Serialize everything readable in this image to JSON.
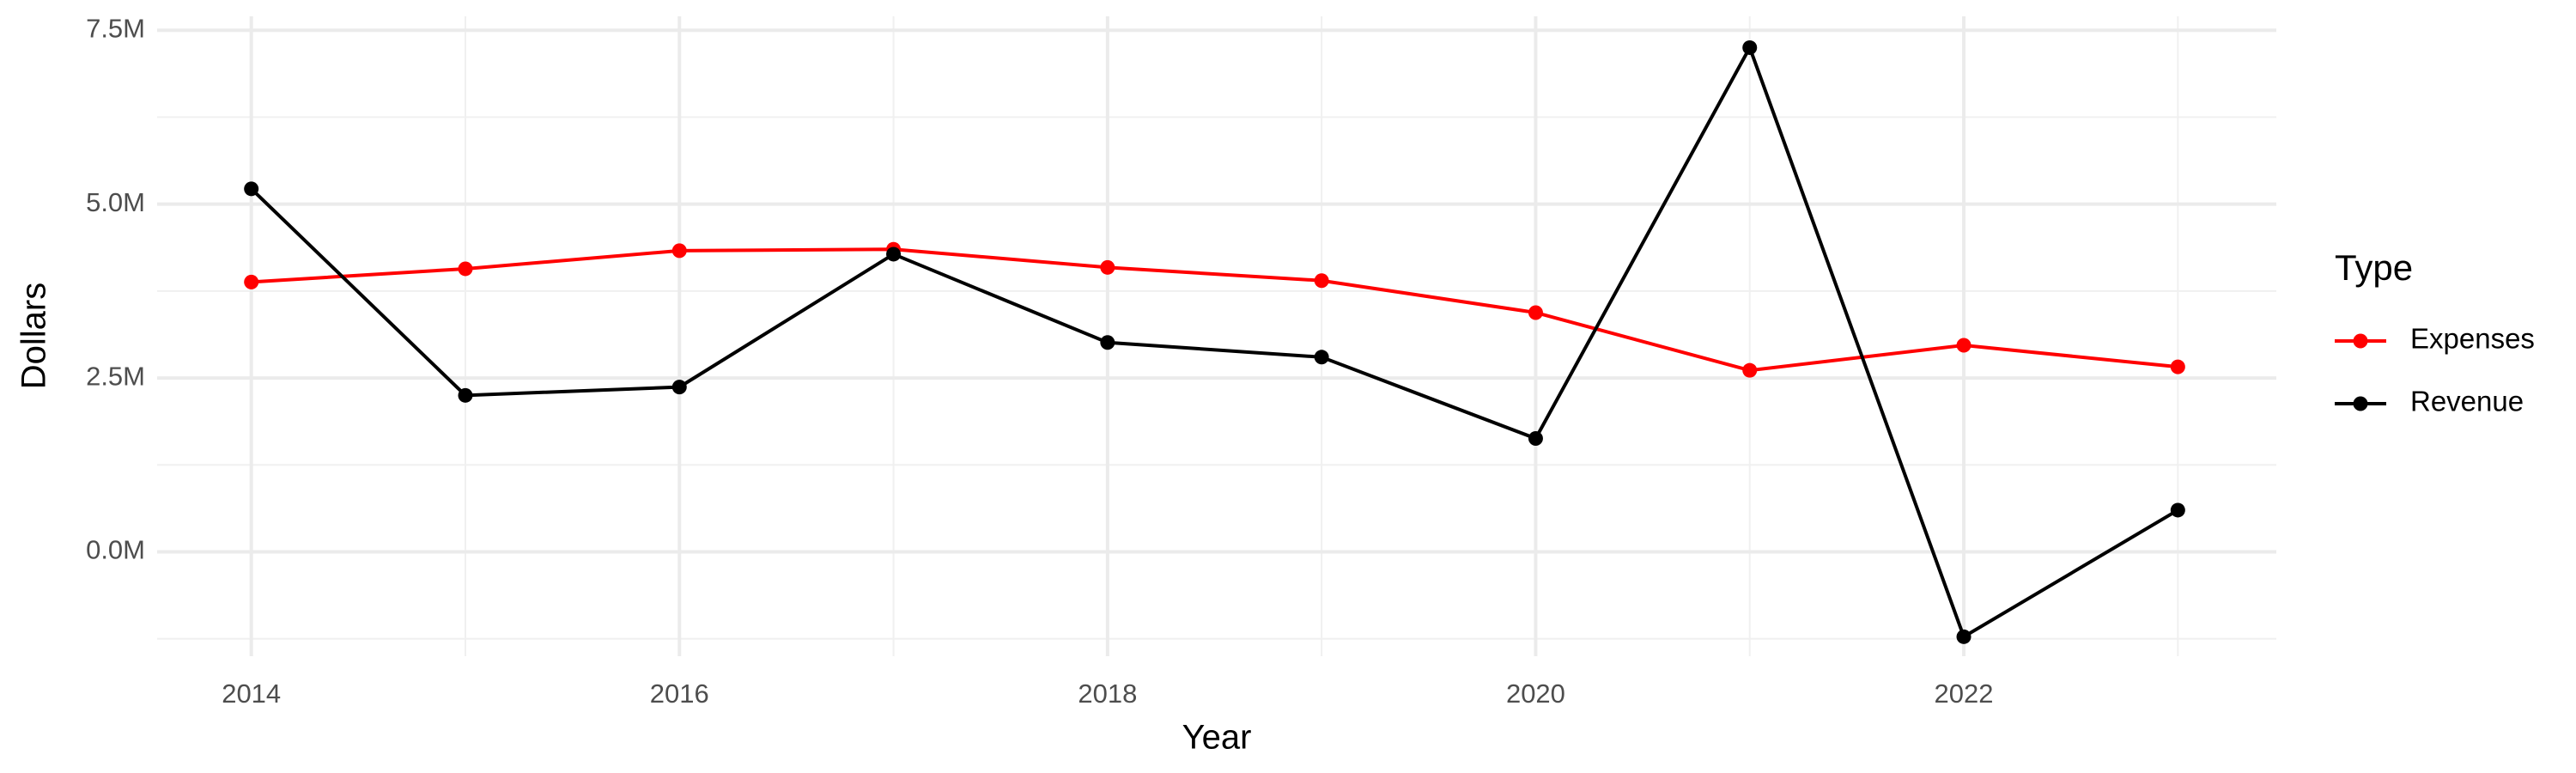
{
  "chart_data": {
    "type": "line",
    "x_label": "Year",
    "y_label": "Dollars",
    "x": [
      2014,
      2015,
      2016,
      2017,
      2018,
      2019,
      2020,
      2021,
      2022,
      2023
    ],
    "series": [
      {
        "name": "Expenses",
        "color": "#ff0000",
        "values": [
          3880000,
          4070000,
          4330000,
          4350000,
          4090000,
          3900000,
          3440000,
          2610000,
          2970000,
          2660000
        ]
      },
      {
        "name": "Revenue",
        "color": "#000000",
        "values": [
          5220000,
          2250000,
          2370000,
          4280000,
          3010000,
          2800000,
          1630000,
          7250000,
          -1220000,
          600000
        ]
      }
    ],
    "xlim": [
      2013.56,
      2023.46
    ],
    "xticks": [
      2014,
      2016,
      2018,
      2020,
      2022
    ],
    "ylim": [
      -1500000,
      7700000
    ],
    "yticks": [
      {
        "value": 0,
        "label": "0.0M"
      },
      {
        "value": 2500000,
        "label": "2.5M"
      },
      {
        "value": 5000000,
        "label": "5.0M"
      },
      {
        "value": 7500000,
        "label": "7.5M"
      }
    ],
    "grid": true,
    "legend_title": "Type",
    "legend_position": "right"
  }
}
